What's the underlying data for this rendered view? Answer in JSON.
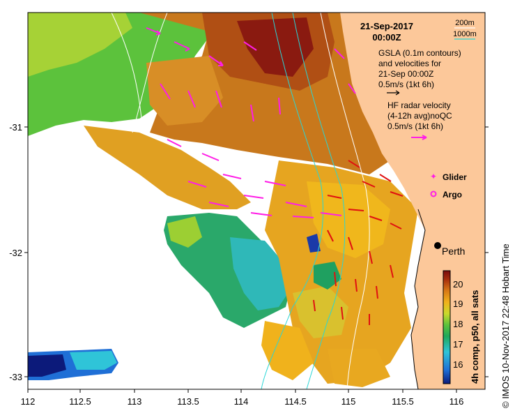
{
  "map": {
    "date": "21-Sep-2017",
    "time": "00:00Z",
    "x_ticks": [
      "112",
      "112.5",
      "113",
      "113.5",
      "114",
      "114.5",
      "115",
      "115.5",
      "116"
    ],
    "y_ticks": [
      "-31",
      "-32",
      "-33"
    ],
    "isobaths": {
      "label_200": "200m",
      "label_1000": "1000m",
      "color_200": "#ffffff",
      "color_1000": "#29d6d6"
    },
    "gsla_legend": [
      "GSLA (0.1m contours)",
      "and velocities for",
      "21-Sep 00:00Z",
      "0.5m/s (1kt 6h)"
    ],
    "radar_legend": [
      "HF radar velocity",
      "(4-12h avg)noQC",
      "0.5m/s (1kt 6h)"
    ],
    "glider_label": "Glider",
    "argo_label": "Argo",
    "city": "Perth",
    "colorbar": {
      "label": "4h comp, p50, all sats",
      "ticks": [
        "20",
        "19",
        "18",
        "17",
        "16"
      ],
      "colors": [
        "#0c1a7a",
        "#1f6fd6",
        "#2fc4d8",
        "#20a85a",
        "#5cc23c",
        "#c9da2c",
        "#f0b21c",
        "#d97a16",
        "#a8300c",
        "#7a0c0c"
      ]
    },
    "credit": "© IMOS 10-Nov-2017 22:48 Hobart Time",
    "colors": {
      "land": "#fcc89a",
      "radar_arrow": "#ff1ee6",
      "gsla_arrow": "#e01010"
    }
  }
}
